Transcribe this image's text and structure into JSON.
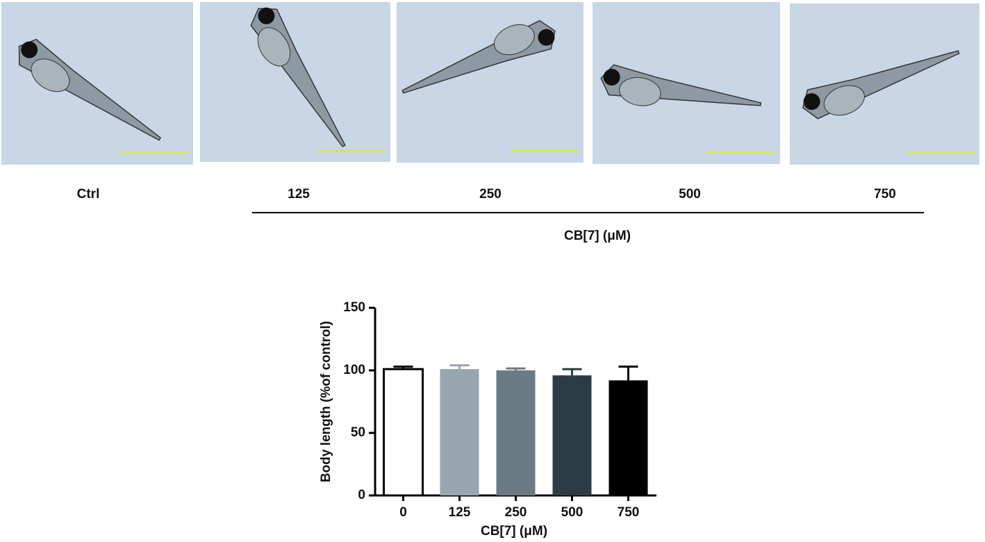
{
  "panels": {
    "labels": [
      "Ctrl",
      "125",
      "250",
      "500",
      "750"
    ],
    "group_label": "CB[7] (μM)"
  },
  "chart_data": {
    "type": "bar",
    "x_label": "CB[7] (μM)",
    "y_label": "Body length (%of control)",
    "categories": [
      "0",
      "125",
      "250",
      "500",
      "750"
    ],
    "values": [
      101,
      101,
      100,
      96,
      92
    ],
    "errors": [
      2,
      3,
      1.5,
      5,
      11
    ],
    "colors": [
      "#ffffff",
      "#97a6af",
      "#6b7b83",
      "#2c3c44",
      "#000000"
    ],
    "ylim": [
      0,
      150
    ],
    "yticks": [
      0,
      50,
      100,
      150
    ]
  }
}
